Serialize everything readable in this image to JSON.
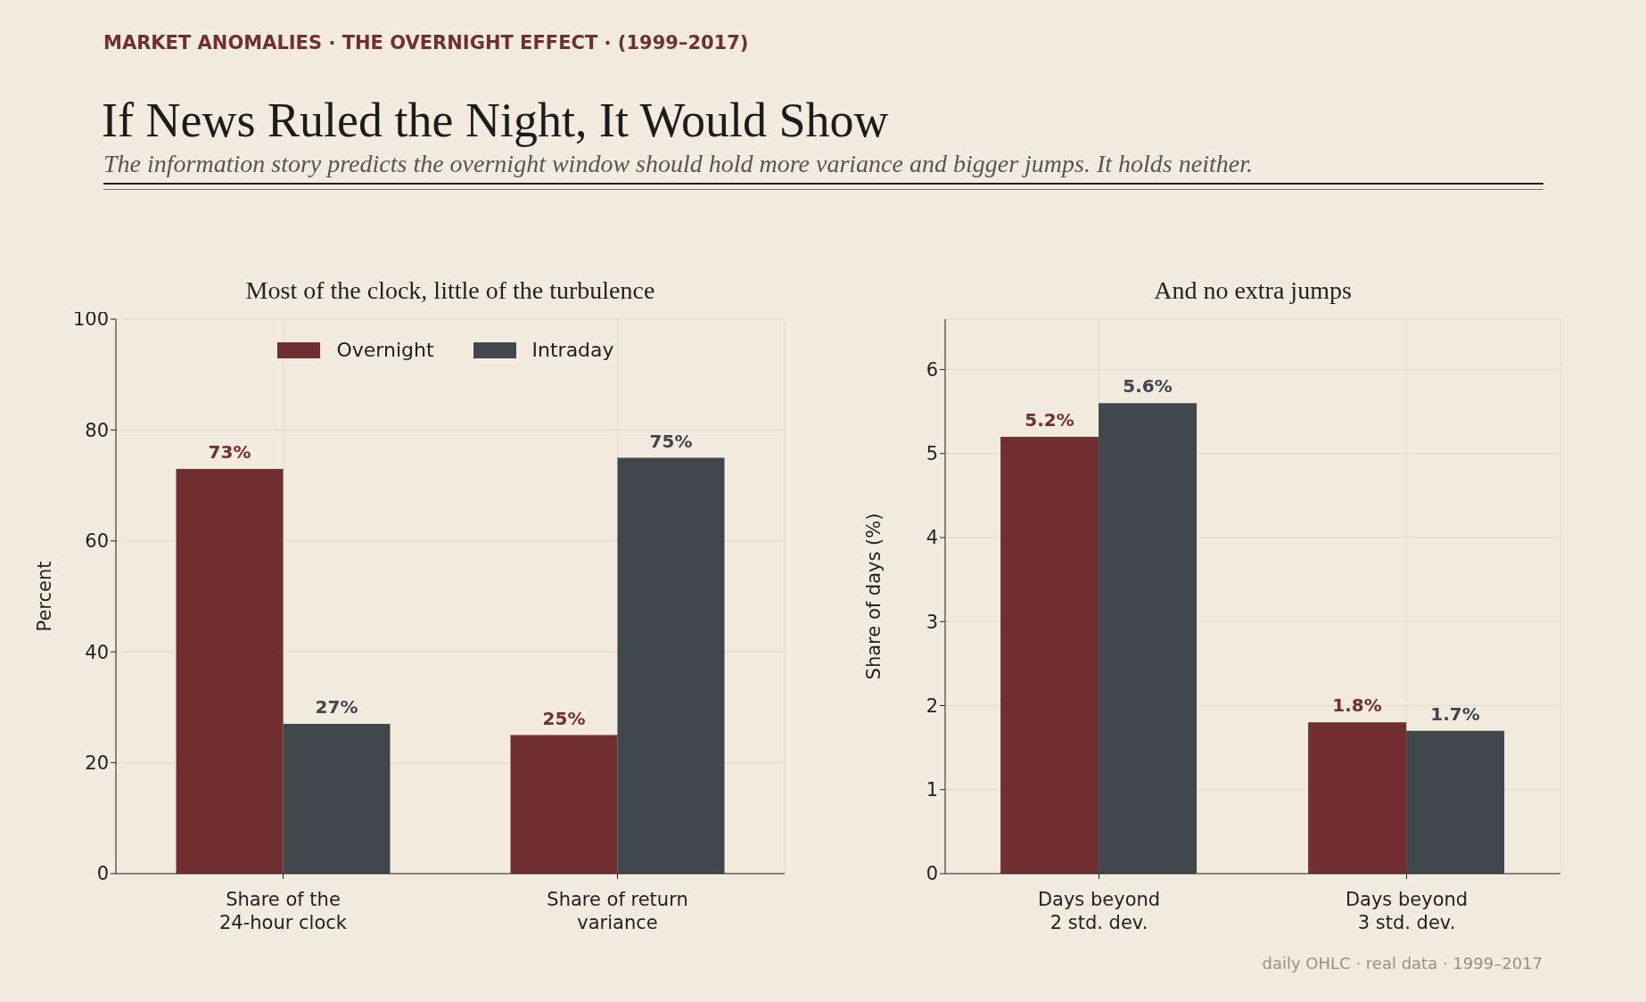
{
  "chart_data": [
    {
      "type": "other",
      "title": "If News Ruled the Night, It Would Show",
      "subtitle": "The information story predicts the overnight window should hold more variance and bigger jumps. It holds neither.",
      "annotations": [
        "MARKET ANOMALIES · THE OVERNIGHT EFFECT · (1999–2017)",
        "daily OHLC · real data · 1999–2017"
      ]
    },
    {
      "type": "bar",
      "title": "Most of the clock, little of the turbulence",
      "ylabel": "Percent",
      "categories": [
        "Share of the\n24-hour clock",
        "Share of return\nvariance"
      ],
      "series": [
        {
          "name": "Overnight",
          "color": "#722f30",
          "values": [
            73,
            25
          ],
          "value_labels": [
            "73%",
            "25%"
          ]
        },
        {
          "name": "Intraday",
          "color": "#3f464c",
          "values": [
            27,
            75
          ],
          "value_labels": [
            "27%",
            "75%"
          ]
        }
      ],
      "ylim": [
        0,
        100
      ],
      "yticks": [
        0,
        20,
        40,
        60,
        80,
        100
      ],
      "grid": true,
      "legend": "top"
    },
    {
      "type": "bar",
      "title": "And no extra jumps",
      "ylabel": "Share of days (%)",
      "categories": [
        "Days beyond\n2 std. dev.",
        "Days beyond\n3 std. dev."
      ],
      "series": [
        {
          "color": "#722f30",
          "values": [
            5.2,
            1.8
          ],
          "value_labels": [
            "5.2%",
            "1.8%"
          ]
        },
        {
          "color": "#3f464c",
          "values": [
            5.6,
            1.7
          ],
          "value_labels": [
            "5.6%",
            "1.7%"
          ]
        }
      ],
      "ylim": [
        0,
        6.6
      ],
      "yticks": [
        0,
        1,
        2,
        3,
        4,
        5,
        6
      ],
      "grid": true
    }
  ]
}
